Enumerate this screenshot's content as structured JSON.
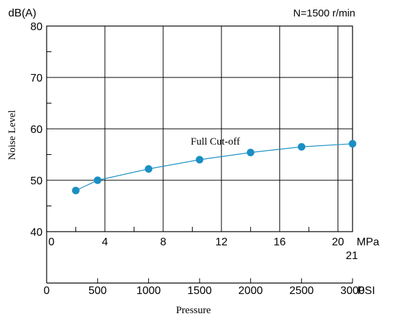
{
  "chart_data": {
    "type": "line",
    "annotations": {
      "y_unit": "dB(A)",
      "condition": "N=1500 r/min",
      "series_label": "Full Cut-off",
      "ylabel": "Noise Level",
      "xlabel": "Pressure",
      "mpa_unit": "MPa",
      "psi_unit": "PSI",
      "mpa_max_label": "21"
    },
    "ylim": [
      40,
      80
    ],
    "y_ticks": [
      40,
      50,
      60,
      70,
      80
    ],
    "xlim_mpa": [
      0,
      21
    ],
    "mpa_ticks": [
      0,
      4,
      8,
      12,
      16,
      20
    ],
    "mpa_max": 21,
    "xlim_psi": [
      0,
      3000
    ],
    "psi_ticks": [
      0,
      500,
      1000,
      1500,
      2000,
      2500,
      3000
    ],
    "grid": true,
    "series": [
      {
        "x": [
          2.0,
          3.5,
          7.0,
          10.5,
          14.0,
          17.5,
          21.0
        ],
        "y": [
          48.0,
          50.0,
          52.2,
          54.0,
          55.4,
          56.5,
          57.1
        ]
      }
    ],
    "colors": {
      "series": "#1a8fc4",
      "axes": "#000000",
      "grid": "#000000"
    }
  }
}
